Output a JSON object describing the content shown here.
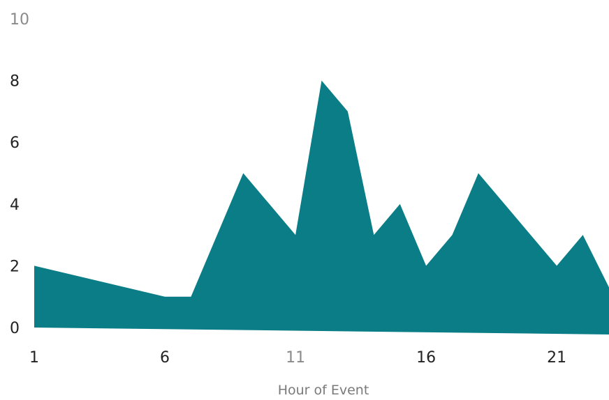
{
  "chart_data": {
    "type": "area",
    "xlabel": "Hour of Event",
    "ylabel": "",
    "title": "",
    "x": [
      1,
      2,
      3,
      4,
      5,
      6,
      7,
      8,
      9,
      10,
      11,
      12,
      13,
      14,
      15,
      16,
      17,
      18,
      19,
      20,
      21,
      22,
      23
    ],
    "series": [
      {
        "values": [
          2,
          1.8,
          1.6,
          1.4,
          1.2,
          1,
          1,
          3,
          5,
          4,
          3,
          8,
          7,
          3,
          4,
          2,
          3,
          5,
          4,
          3,
          2,
          3,
          1.3
        ]
      }
    ],
    "xticks": [
      "1",
      "6",
      "11",
      "16",
      "21"
    ],
    "yticks": [
      "0",
      "2",
      "4",
      "6",
      "8",
      "10"
    ],
    "xlim": [
      1,
      23
    ],
    "ylim": [
      0,
      10
    ],
    "grid": false,
    "legend": "none",
    "color": "#0a7d87"
  }
}
